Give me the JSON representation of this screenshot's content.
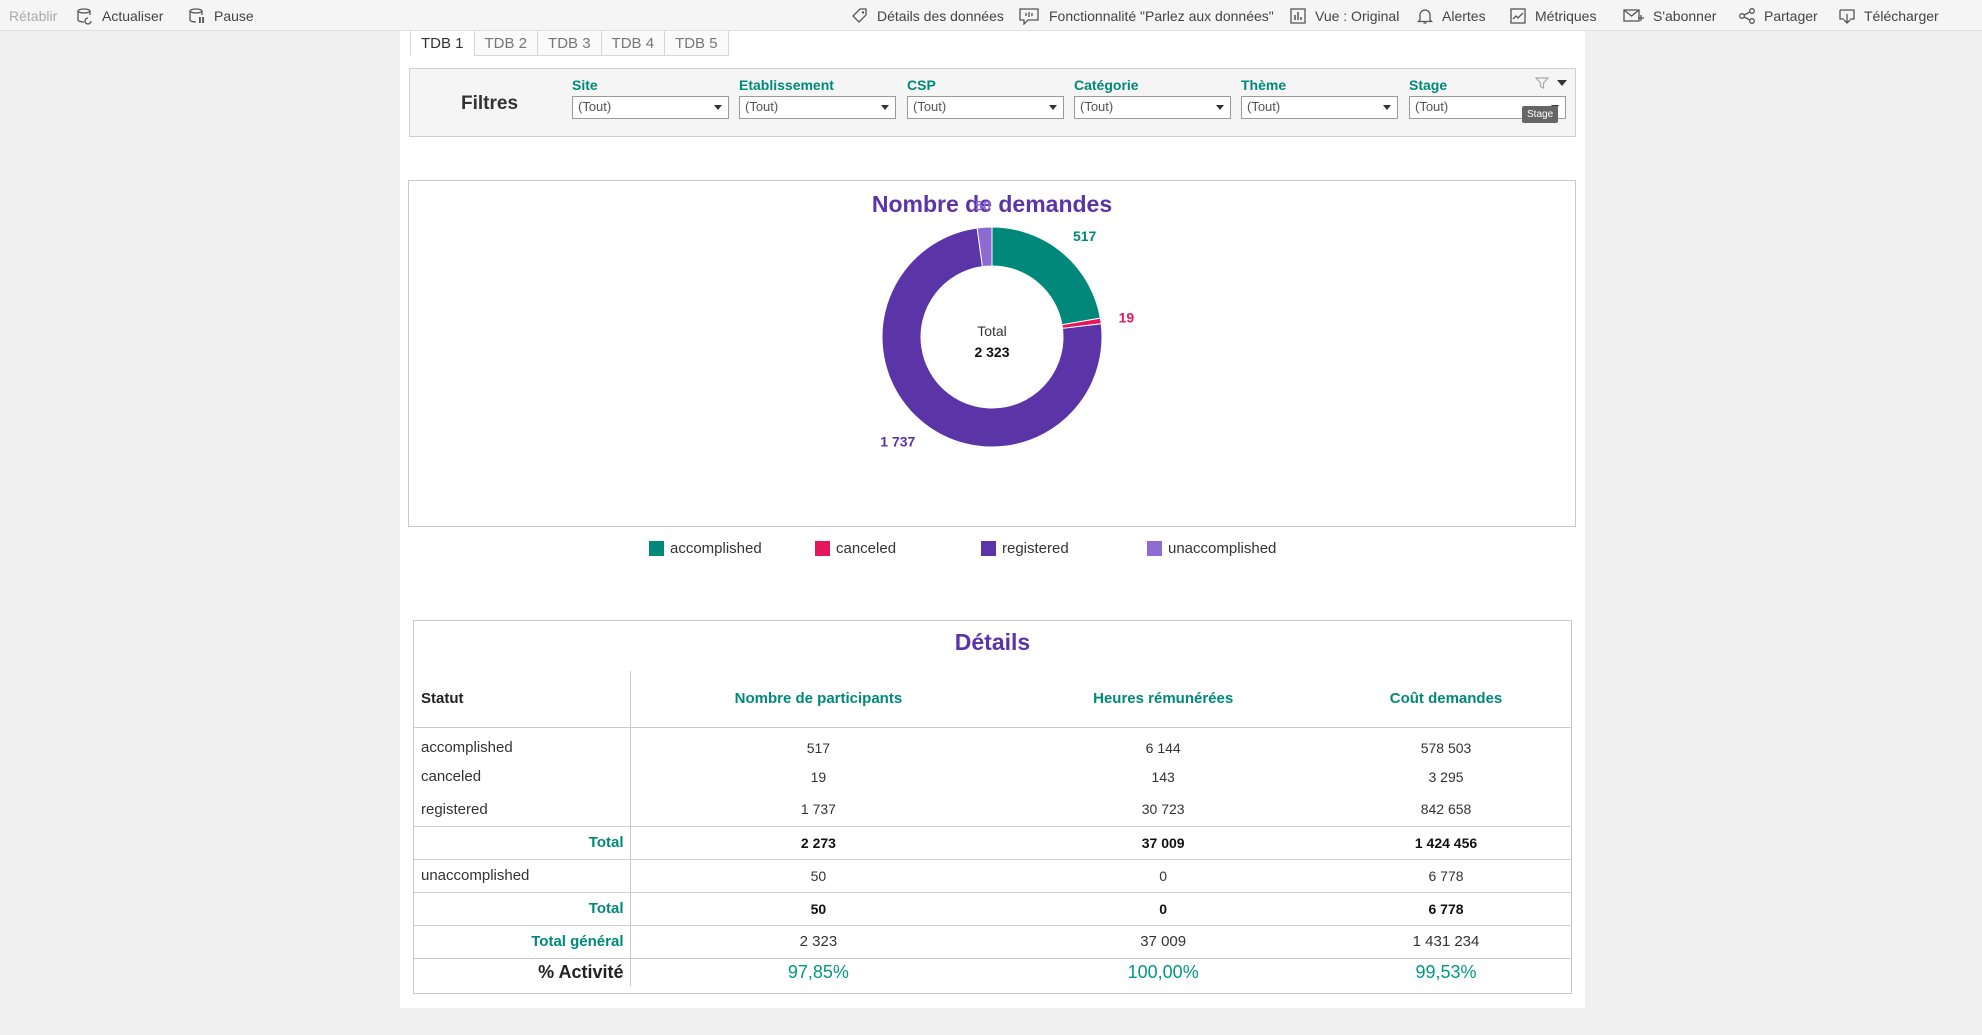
{
  "toolbar": {
    "items": [
      {
        "label": "Rétablir",
        "icon": "undo-icon"
      },
      {
        "label": "Actualiser",
        "icon": "refresh-icon"
      },
      {
        "label": "Pause",
        "icon": "pause-icon"
      },
      {
        "label": "Détails des données",
        "icon": "tag-icon"
      },
      {
        "label": "Fonctionnalité \"Parlez aux données\"",
        "icon": "speech-bubble-icon"
      },
      {
        "label": "Vue : Original",
        "icon": "view-chart-icon"
      },
      {
        "label": "Alertes",
        "icon": "bell-icon"
      },
      {
        "label": "Métriques",
        "icon": "metrics-icon"
      },
      {
        "label": "S'abonner",
        "icon": "subscribe-icon"
      },
      {
        "label": "Partager",
        "icon": "share-icon"
      },
      {
        "label": "Télécharger",
        "icon": "download-icon"
      }
    ]
  },
  "tabs": [
    "TDB 1",
    "TDB 2",
    "TDB 3",
    "TDB 4",
    "TDB 5"
  ],
  "filters": {
    "title": "Filtres",
    "items": [
      {
        "label": "Site",
        "value": "(Tout)"
      },
      {
        "label": "Etablissement",
        "value": "(Tout)"
      },
      {
        "label": "CSP",
        "value": "(Tout)"
      },
      {
        "label": "Catégorie",
        "value": "(Tout)"
      },
      {
        "label": "Thème",
        "value": "(Tout)"
      },
      {
        "label": "Stage",
        "value": "(Tout)"
      }
    ],
    "tooltip": "Stage"
  },
  "chart_data": {
    "type": "pie",
    "title": "Nombre de demandes",
    "center_label": "Total",
    "center_value": "2 323",
    "categories": [
      "accomplished",
      "canceled",
      "registered",
      "unaccomplished"
    ],
    "values": [
      517,
      19,
      1737,
      50
    ],
    "value_labels": [
      "517",
      "19",
      "1 737",
      "50"
    ],
    "colors": [
      "#00897b",
      "#e8175d",
      "#5b35a8",
      "#8e6bd0"
    ],
    "legend_position": "bottom"
  },
  "legend": [
    "accomplished",
    "canceled",
    "registered",
    "unaccomplished"
  ],
  "details": {
    "title": "Détails",
    "headers": [
      "Statut",
      "Nombre de participants",
      "Heures rémunérées",
      "Coût demandes"
    ],
    "rows": [
      {
        "label": "accomplished",
        "values": [
          "517",
          "6 144",
          "578 503"
        ]
      },
      {
        "label": "canceled",
        "values": [
          "19",
          "143",
          "3 295"
        ]
      },
      {
        "label": "registered",
        "values": [
          "1 737",
          "30 723",
          "842 658"
        ]
      },
      {
        "label": "Total",
        "values": [
          "2 273",
          "37 009",
          "1 424 456"
        ]
      },
      {
        "label": "unaccomplished",
        "values": [
          "50",
          "0",
          "6 778"
        ]
      },
      {
        "label": "Total",
        "values": [
          "50",
          "0",
          "6 778"
        ]
      },
      {
        "label": "Total général",
        "values": [
          "2 323",
          "37 009",
          "1 431 234"
        ]
      },
      {
        "label": "% Activité",
        "values": [
          "97,85%",
          "100,00%",
          "99,53%"
        ]
      }
    ]
  }
}
